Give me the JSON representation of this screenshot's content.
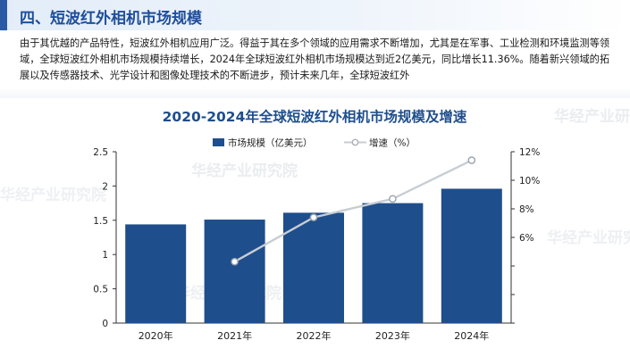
{
  "section": {
    "title": "四、短波红外相机市场规模",
    "paragraph": "由于其优越的产品特性，短波红外相机应用广泛。得益于其在多个领域的应用需求不断增加，尤其是在军事、工业检测和环境监测等领域，全球短波红外相机市场规模持续增长，2024年全球短波红外相机市场规模达到近2亿美元，同比增长11.36%。随着新兴领域的拓展以及传感器技术、光学设计和图像处理技术的不断进步，预计未来几年，全球短波红外"
  },
  "watermark": "华经产业研究院",
  "colors": {
    "bar": "#1f4e8c",
    "line": "#c8cdd3",
    "title": "#1f4e8c",
    "header": "#1f4e9a"
  },
  "chart_data": {
    "type": "bar",
    "title": "2020-2024年全球短波红外相机市场规模及增速",
    "categories": [
      "2020年",
      "2021年",
      "2022年",
      "2023年",
      "2024年"
    ],
    "series": [
      {
        "name": "市场规模（亿美元）",
        "type": "bar",
        "axis": "left",
        "values": [
          1.44,
          1.51,
          1.61,
          1.75,
          1.96
        ]
      },
      {
        "name": "增速（%）",
        "type": "line",
        "axis": "right",
        "values": [
          null,
          4.3,
          7.4,
          8.7,
          11.4
        ]
      }
    ],
    "ylim": [
      0,
      2.5
    ],
    "yticks": [
      "0",
      "0.5",
      "1",
      "1.5",
      "2",
      "2.5"
    ],
    "y2lim": [
      0,
      12
    ],
    "y2ticks": [
      "",
      "",
      "",
      "6%",
      "8%",
      "10%",
      "12%"
    ],
    "legend_position": "top-center"
  }
}
